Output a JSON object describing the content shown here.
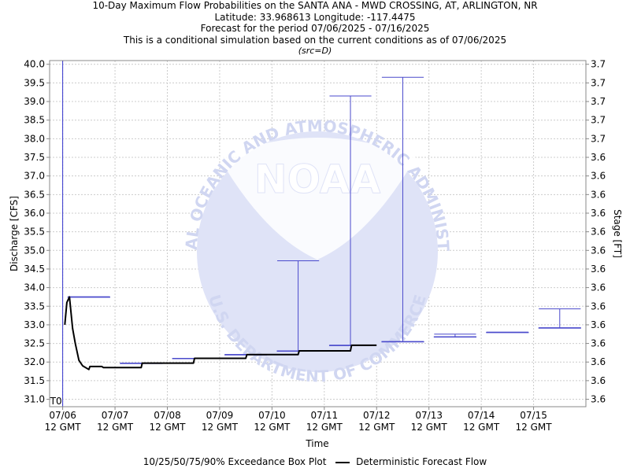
{
  "title_lines": [
    "10-Day Maximum Flow Probabilities on the SANTA ANA - MWD CROSSING, AT, ARLINGTON, NR",
    "Latitude: 33.968613 Longitude: -117.4475",
    "Forecast for the period 07/06/2025 - 07/16/2025",
    "This is a conditional simulation based on the current conditions as of 07/06/2025",
    "(src=D)"
  ],
  "watermark": {
    "logo_text": "NOAA",
    "ring_text_top": "NATIONAL OCEANIC AND ATMOSPHERIC ADMINISTRATION",
    "ring_text_bottom": "U.S. DEPARTMENT OF COMMERCE"
  },
  "legend": {
    "boxplot_label": "10/25/50/75/90% Exceedance Box Plot",
    "line_label": "Deterministic Forecast Flow"
  },
  "chart_data": {
    "type": "line",
    "xlabel": "Time",
    "ylabel": "Discharge [CFS]",
    "y2label": "Stage [FT]",
    "ylim": [
      30.8,
      40.1
    ],
    "xlim": [
      -0.25,
      10.0
    ],
    "t0_label": "T0",
    "t0_x": 0.0,
    "x_ticks": [
      {
        "x": 0,
        "date": "07/06",
        "time": "12 GMT"
      },
      {
        "x": 1,
        "date": "07/07",
        "time": "12 GMT"
      },
      {
        "x": 2,
        "date": "07/08",
        "time": "12 GMT"
      },
      {
        "x": 3,
        "date": "07/09",
        "time": "12 GMT"
      },
      {
        "x": 4,
        "date": "07/10",
        "time": "12 GMT"
      },
      {
        "x": 5,
        "date": "07/11",
        "time": "12 GMT"
      },
      {
        "x": 6,
        "date": "07/12",
        "time": "12 GMT"
      },
      {
        "x": 7,
        "date": "07/13",
        "time": "12 GMT"
      },
      {
        "x": 8,
        "date": "07/14",
        "time": "12 GMT"
      },
      {
        "x": 9,
        "date": "07/15",
        "time": "12 GMT"
      }
    ],
    "y_ticks": [
      31.0,
      31.5,
      32.0,
      32.5,
      33.0,
      33.5,
      34.0,
      34.5,
      35.0,
      35.5,
      36.0,
      36.5,
      37.0,
      37.5,
      38.0,
      38.5,
      39.0,
      39.5,
      40.0
    ],
    "y2_tick_labels": [
      "3.6",
      "3.6",
      "3.6",
      "3.6",
      "3.6",
      "3.6",
      "3.6",
      "3.6",
      "3.6",
      "3.6",
      "3.6",
      "3.6",
      "3.6",
      "3.6",
      "3.7",
      "3.7",
      "3.7",
      "3.7",
      "3.7"
    ],
    "grid": true,
    "deterministic_series": {
      "name": "Deterministic Forecast Flow",
      "x": [
        0.04,
        0.08,
        0.13,
        0.19,
        0.24,
        0.31,
        0.38,
        0.5,
        0.52,
        0.58,
        0.6,
        0.75,
        0.78,
        1.0,
        1.5,
        1.52,
        2.0,
        2.5,
        2.52,
        3.0,
        3.5,
        3.52,
        4.0,
        4.5,
        4.52,
        5.0,
        5.5,
        5.52,
        6.0
      ],
      "y": [
        33.0,
        33.6,
        33.75,
        32.9,
        32.5,
        32.05,
        31.9,
        31.8,
        31.88,
        31.88,
        31.88,
        31.88,
        31.85,
        31.85,
        31.85,
        31.97,
        31.97,
        31.97,
        32.1,
        32.1,
        32.1,
        32.2,
        32.2,
        32.2,
        32.3,
        32.3,
        32.3,
        32.45,
        32.45
      ]
    },
    "exceedance_boxes": [
      {
        "day": "07/06",
        "x_start": 0.1,
        "x_end": 0.9,
        "p10": 33.75,
        "p25": 33.75,
        "p50": 33.75,
        "p75": 33.75,
        "p90": 33.75
      },
      {
        "day": "07/07",
        "x_start": 1.1,
        "x_end": 1.9,
        "p10": 31.97,
        "p25": 31.97,
        "p50": 31.97,
        "p75": 31.97,
        "p90": 31.97
      },
      {
        "day": "07/08",
        "x_start": 2.1,
        "x_end": 2.9,
        "p10": 32.1,
        "p25": 32.1,
        "p50": 32.1,
        "p75": 32.1,
        "p90": 32.1
      },
      {
        "day": "07/09",
        "x_start": 3.1,
        "x_end": 3.9,
        "p10": 32.2,
        "p25": 32.2,
        "p50": 32.2,
        "p75": 32.2,
        "p90": 32.2
      },
      {
        "day": "07/10",
        "x_start": 4.1,
        "x_end": 4.9,
        "p10": 34.72,
        "p25": 32.3,
        "p50": 32.3,
        "p75": 32.3,
        "p90": 32.3
      },
      {
        "day": "07/11",
        "x_start": 5.1,
        "x_end": 5.9,
        "p10": 39.15,
        "p25": 32.45,
        "p50": 32.45,
        "p75": 32.45,
        "p90": 32.45
      },
      {
        "day": "07/12",
        "x_start": 6.1,
        "x_end": 6.9,
        "p10": 39.65,
        "p25": 32.55,
        "p50": 32.55,
        "p75": 32.55,
        "p90": 32.55
      },
      {
        "day": "07/13",
        "x_start": 7.1,
        "x_end": 7.9,
        "p10": 32.75,
        "p25": 32.68,
        "p50": 32.68,
        "p75": 32.68,
        "p90": 32.68
      },
      {
        "day": "07/14",
        "x_start": 8.1,
        "x_end": 8.9,
        "p10": 32.8,
        "p25": 32.8,
        "p50": 32.8,
        "p75": 32.8,
        "p90": 32.8
      },
      {
        "day": "07/15",
        "x_start": 9.1,
        "x_end": 9.9,
        "p10": 33.43,
        "p25": 32.92,
        "p50": 32.92,
        "p75": 32.92,
        "p90": 32.92
      }
    ],
    "colors": {
      "axes": "#888888",
      "grid": "#cccccc",
      "boxplot": "#4a4acc",
      "deterministic": "#000000",
      "t0_line": "#3333cc",
      "watermark": "#d8dcf4"
    }
  }
}
